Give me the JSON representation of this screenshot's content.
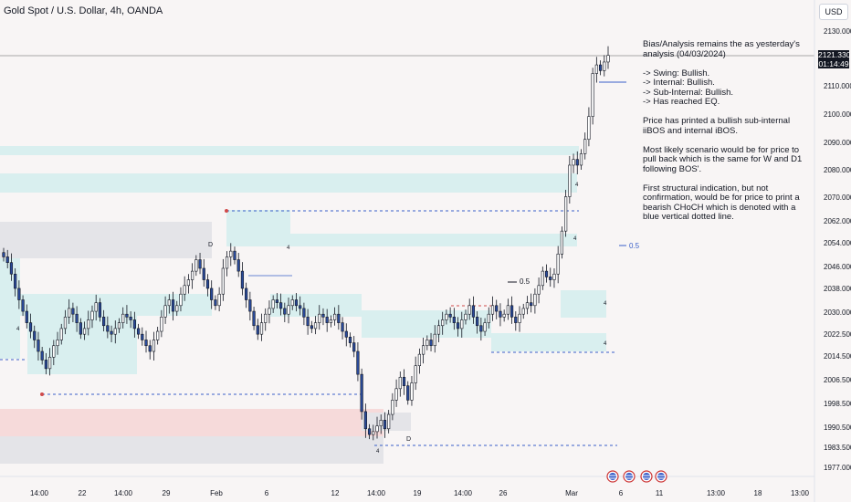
{
  "header": {
    "symbol_title": "Gold Spot / U.S. Dollar, 4h, OANDA",
    "currency_label": "USD"
  },
  "price_axis": {
    "ticks": [
      "2130.000",
      "2110.000",
      "2100.000",
      "2090.000",
      "2080.000",
      "2070.000",
      "2062.000",
      "2054.000",
      "2046.000",
      "2038.000",
      "2030.000",
      "2022.500",
      "2014.500",
      "2006.500",
      "1998.500",
      "1990.500",
      "1983.500",
      "1977.000"
    ],
    "current_price": "2121.330",
    "countdown": "01:14:49"
  },
  "time_axis": {
    "ticks": [
      "14:00",
      "22",
      "14:00",
      "29",
      "Feb",
      "6",
      "12",
      "14:00",
      "19",
      "14:00",
      "26",
      "Mar",
      "6",
      "11",
      "13:00",
      "18",
      "13:00"
    ]
  },
  "annotation": {
    "lines": [
      "Bias/Analysis remains the as yesterday's analysis (04/03/2024)",
      "",
      "-> Swing:  Bullish.",
      "-> Internal:  Bullish.",
      "-> Sub-Internal:  Bullish.",
      "-> Has reached EQ.",
      "",
      "Price has printed a bullish sub-internal iiBOS and internal iBOS.",
      "",
      "Most likely scenario would be for price to pull back which is the same for W and D1 following BOS'.",
      "",
      "First structural indication, but not confirmation, would be for price to print a bearish CHoCH which is denoted with a blue vertical dotted line."
    ]
  },
  "chart_labels": {
    "eq_label_main": "0.5",
    "eq_label_mid": "0.5",
    "d_markers": [
      "D",
      "D"
    ],
    "small_markers": [
      "4",
      "4",
      "4",
      "4",
      "4",
      "4",
      "4"
    ]
  },
  "colors": {
    "background": "#f8f5f5",
    "bull_candle": "#ffffff",
    "bear_candle": "#2a4a9a",
    "demand_zone": "#d9efef",
    "supply_zone": "#f6dada",
    "grey_zone": "#e4e4e8",
    "dashed_blue": "#3a5fc9",
    "dashed_red": "#d04a4a"
  },
  "chart_data": {
    "type": "candlestick",
    "instrument": "Gold Spot / U.S. Dollar",
    "timeframe": "4h",
    "ylim": [
      1975,
      2133
    ],
    "closes": [
      2051,
      2049,
      2045,
      2040,
      2036,
      2032,
      2028,
      2025,
      2022,
      2018,
      2015,
      2012,
      2016,
      2020,
      2022,
      2026,
      2030,
      2033,
      2031,
      2028,
      2024,
      2026,
      2029,
      2032,
      2035,
      2030,
      2027,
      2025,
      2024,
      2026,
      2028,
      2031,
      2030,
      2029,
      2026,
      2024,
      2022,
      2020,
      2018,
      2022,
      2025,
      2030,
      2034,
      2036,
      2032,
      2034,
      2038,
      2041,
      2043,
      2046,
      2050,
      2047,
      2043,
      2040,
      2036,
      2034,
      2038,
      2047,
      2051,
      2053,
      2050,
      2046,
      2040,
      2036,
      2032,
      2027,
      2024,
      2028,
      2031,
      2033,
      2036,
      2035,
      2033,
      2031,
      2034,
      2036,
      2034,
      2033,
      2030,
      2027,
      2026,
      2028,
      2031,
      2030,
      2028,
      2029,
      2031,
      2028,
      2025,
      2023,
      2021,
      2018,
      2010,
      1997,
      1991,
      1989,
      1990,
      1992,
      1994,
      1991,
      1996,
      2001,
      2005,
      2009,
      2006,
      2001,
      2007,
      2013,
      2017,
      2020,
      2022,
      2020,
      2024,
      2027,
      2029,
      2031,
      2030,
      2028,
      2026,
      2029,
      2031,
      2034,
      2030,
      2027,
      2025,
      2028,
      2031,
      2034,
      2032,
      2030,
      2031,
      2034,
      2030,
      2028,
      2031,
      2033,
      2035,
      2034,
      2038,
      2041,
      2046,
      2044,
      2043,
      2045,
      2052,
      2060,
      2072,
      2083,
      2085,
      2083,
      2087,
      2092,
      2100,
      2115,
      2118,
      2116,
      2119,
      2121.33
    ],
    "current_price": 2121.33
  }
}
